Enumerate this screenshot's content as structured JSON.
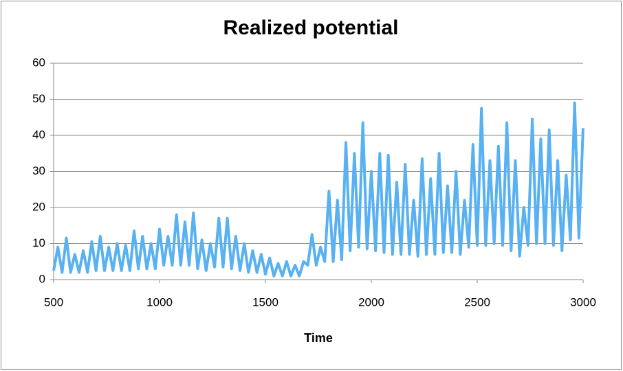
{
  "chart_data": {
    "type": "line",
    "title": "Realized potential",
    "x_label": "Time",
    "x": [
      500,
      520,
      540,
      560,
      580,
      600,
      620,
      640,
      660,
      680,
      700,
      720,
      740,
      760,
      780,
      800,
      820,
      840,
      860,
      880,
      900,
      920,
      940,
      960,
      980,
      1000,
      1020,
      1040,
      1060,
      1080,
      1100,
      1120,
      1140,
      1160,
      1180,
      1200,
      1220,
      1240,
      1260,
      1280,
      1300,
      1320,
      1340,
      1360,
      1380,
      1400,
      1420,
      1440,
      1460,
      1480,
      1500,
      1520,
      1540,
      1560,
      1580,
      1600,
      1620,
      1640,
      1660,
      1680,
      1700,
      1720,
      1740,
      1760,
      1780,
      1800,
      1820,
      1840,
      1860,
      1880,
      1900,
      1920,
      1940,
      1960,
      1980,
      2000,
      2020,
      2040,
      2060,
      2080,
      2100,
      2120,
      2140,
      2160,
      2180,
      2200,
      2220,
      2240,
      2260,
      2280,
      2300,
      2320,
      2340,
      2360,
      2380,
      2400,
      2420,
      2440,
      2460,
      2480,
      2500,
      2520,
      2540,
      2560,
      2580,
      2600,
      2620,
      2640,
      2660,
      2680,
      2700,
      2720,
      2740,
      2760,
      2780,
      2800,
      2820,
      2840,
      2860,
      2880,
      2900,
      2920,
      2940,
      2960,
      2980,
      3000
    ],
    "series": [
      {
        "color": "#58b1f2",
        "values": [
          2.5,
          9,
          2,
          11.5,
          2,
          7,
          2,
          8,
          2,
          10.5,
          2.5,
          12,
          2.5,
          9,
          2.5,
          10,
          2.5,
          9.5,
          2.5,
          13.5,
          3,
          12,
          3,
          10,
          3,
          14,
          4,
          12,
          4,
          18,
          4,
          16,
          4,
          18.5,
          3,
          11,
          2.5,
          10,
          3.5,
          17,
          3.5,
          17,
          3,
          12,
          2.5,
          10,
          2,
          8,
          2,
          7,
          1.5,
          6,
          1,
          4.5,
          1,
          5,
          1,
          4,
          1,
          5,
          4,
          12.5,
          4,
          9,
          5,
          24.5,
          5,
          22,
          5.5,
          38,
          8,
          35,
          9,
          43.5,
          8.5,
          30,
          8,
          35,
          7.5,
          34.5,
          7,
          27,
          7,
          32,
          7,
          22,
          6.5,
          33.5,
          7,
          28,
          7,
          35,
          7.5,
          26,
          7.5,
          30,
          7,
          22,
          9,
          37.5,
          9.5,
          47.5,
          9.5,
          33,
          10,
          37,
          9.5,
          43.5,
          8,
          33,
          6.5,
          20,
          9.5,
          44.5,
          10,
          39,
          10,
          41.5,
          9.5,
          33,
          8,
          29,
          11,
          49,
          11.5,
          42
        ]
      }
    ],
    "xlim": [
      500,
      3000
    ],
    "xticks": [
      500,
      1000,
      1500,
      2000,
      2500,
      3000
    ],
    "ylim": [
      0,
      60
    ],
    "yticks": [
      0,
      10,
      20,
      30,
      40,
      50,
      60
    ],
    "grid": true
  }
}
